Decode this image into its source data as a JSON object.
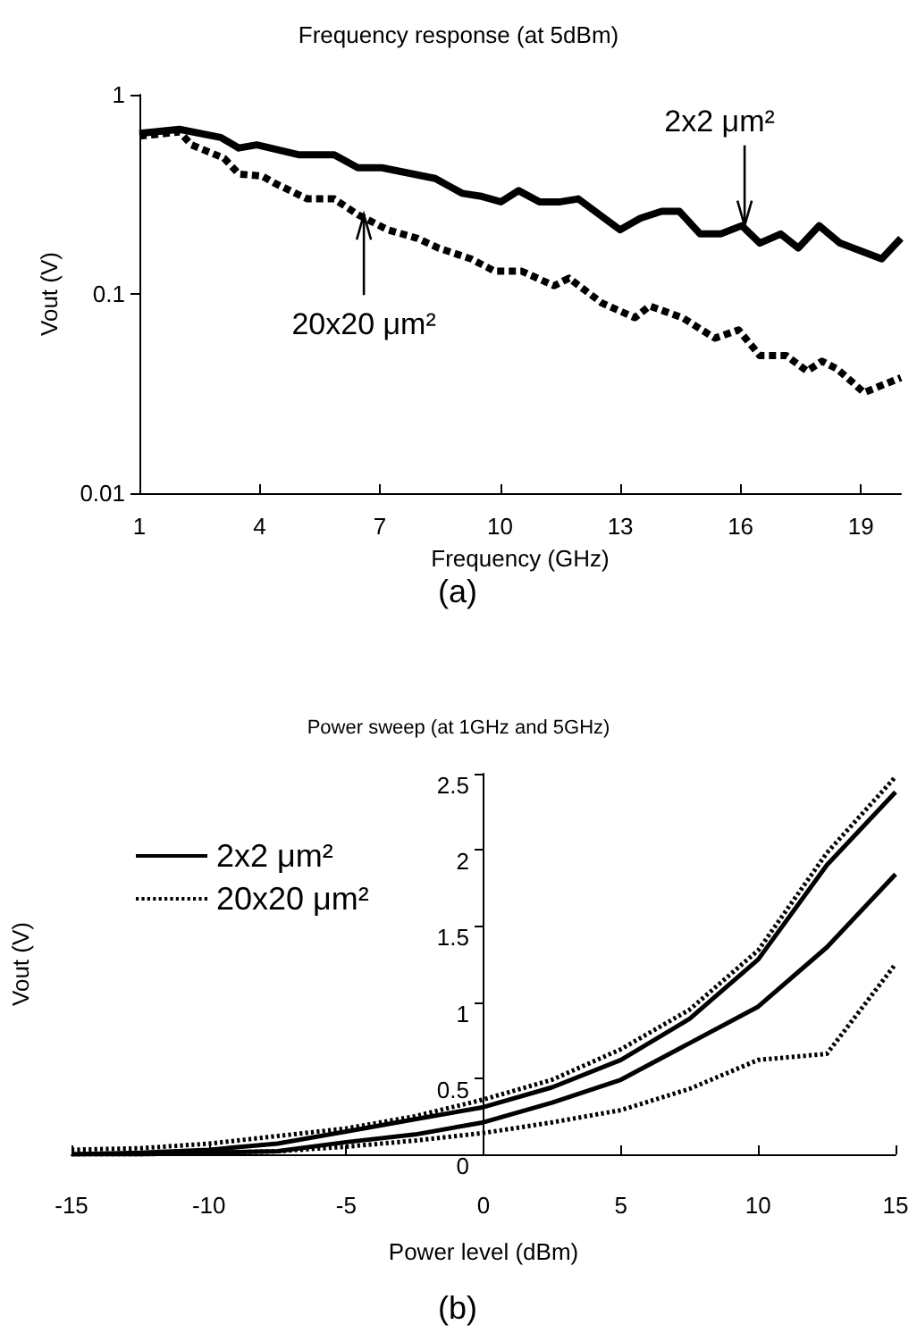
{
  "chart_data": [
    {
      "type": "line",
      "title": "Frequency response (at 5dBm)",
      "xlabel": "Frequency (GHz)",
      "ylabel": "Vout (V)",
      "log": "y",
      "xlim": [
        1,
        20
      ],
      "xticks": [
        1,
        4,
        7,
        10,
        13,
        16,
        19
      ],
      "ylim": [
        0.01,
        1
      ],
      "yticks": [
        0.01,
        0.1,
        1
      ],
      "grid": false,
      "legend": false,
      "marker": "none",
      "annotations": [
        "(a)",
        {
          "text": "2x2 μm²",
          "x": 16.1,
          "y": 0.22
        },
        {
          "text": "20x20 μm²",
          "x": 6.6,
          "y": 0.25
        }
      ],
      "series": [
        {
          "color": "#000000",
          "line_style": "solid",
          "x": [
            1.0,
            2.0,
            3.03,
            3.48,
            3.93,
            4.97,
            5.86,
            6.45,
            7.05,
            8.38,
            9.05,
            9.5,
            10.02,
            10.46,
            10.98,
            11.5,
            11.95,
            12.99,
            13.5,
            14.03,
            14.47,
            14.99,
            15.5,
            16.03,
            16.48,
            17.0,
            17.44,
            17.96,
            18.48,
            19.52,
            20.0
          ],
          "values": [
            0.64,
            0.67,
            0.61,
            0.54,
            0.56,
            0.5,
            0.5,
            0.43,
            0.43,
            0.38,
            0.32,
            0.31,
            0.29,
            0.33,
            0.29,
            0.29,
            0.3,
            0.21,
            0.24,
            0.26,
            0.26,
            0.2,
            0.2,
            0.22,
            0.18,
            0.2,
            0.17,
            0.22,
            0.18,
            0.15,
            0.19
          ]
        },
        {
          "color": "#000000",
          "line_style": "dashed",
          "x": [
            1.0,
            2.0,
            2.3,
            3.11,
            3.48,
            4.07,
            4.37,
            5.19,
            5.86,
            6.45,
            7.19,
            7.94,
            8.46,
            9.27,
            9.87,
            10.54,
            11.35,
            11.72,
            12.54,
            13.36,
            13.73,
            14.55,
            15.36,
            15.95,
            16.48,
            17.14,
            17.66,
            18.03,
            18.41,
            19.08,
            20.0
          ],
          "values": [
            0.62,
            0.65,
            0.56,
            0.48,
            0.4,
            0.39,
            0.36,
            0.3,
            0.3,
            0.25,
            0.21,
            0.19,
            0.17,
            0.15,
            0.13,
            0.13,
            0.11,
            0.12,
            0.09,
            0.076,
            0.087,
            0.076,
            0.06,
            0.066,
            0.049,
            0.049,
            0.041,
            0.046,
            0.042,
            0.032,
            0.038
          ]
        }
      ]
    },
    {
      "type": "line",
      "title": "Power sweep (at 1GHz and 5GHz)",
      "xlabel": "Power level (dBm)",
      "ylabel": "Vout (V)",
      "xlim": [
        -15,
        15
      ],
      "xticks": [
        -15,
        -10,
        -5,
        0,
        5,
        10,
        15
      ],
      "ylim": [
        0,
        2.5
      ],
      "yticks": [
        0,
        0.5,
        1,
        1.5,
        2,
        2.5
      ],
      "grid": false,
      "legend": "top left",
      "marker": "none",
      "x": [
        -15,
        -12.5,
        -10,
        -7.5,
        -5,
        -2.5,
        0,
        2.5,
        5,
        7.5,
        10,
        12.5,
        15
      ],
      "annotations": [
        "(b)"
      ],
      "series": [
        {
          "name": "2x2 μm²",
          "color": "#000000",
          "line_style": "solid",
          "values": [
            0,
            0.01,
            0.03,
            0.07,
            0.15,
            0.23,
            0.31,
            0.44,
            0.62,
            0.89,
            1.28,
            1.9,
            2.38
          ]
        },
        {
          "name": "20x20 μm²",
          "color": "#000000",
          "line_style": "dotted",
          "values": [
            0.03,
            0.04,
            0.07,
            0.12,
            0.17,
            0.25,
            0.36,
            0.49,
            0.69,
            0.95,
            1.34,
            1.98,
            2.48
          ]
        },
        {
          "color": "#000000",
          "line_style": "solid",
          "values": [
            0,
            0,
            0.01,
            0.02,
            0.08,
            0.13,
            0.21,
            0.34,
            0.49,
            0.73,
            0.97,
            1.36,
            1.84
          ]
        },
        {
          "color": "#000000",
          "line_style": "dotted",
          "values": [
            0,
            0,
            0.01,
            0.02,
            0.05,
            0.09,
            0.14,
            0.21,
            0.29,
            0.43,
            0.62,
            0.66,
            1.25
          ]
        }
      ]
    }
  ]
}
